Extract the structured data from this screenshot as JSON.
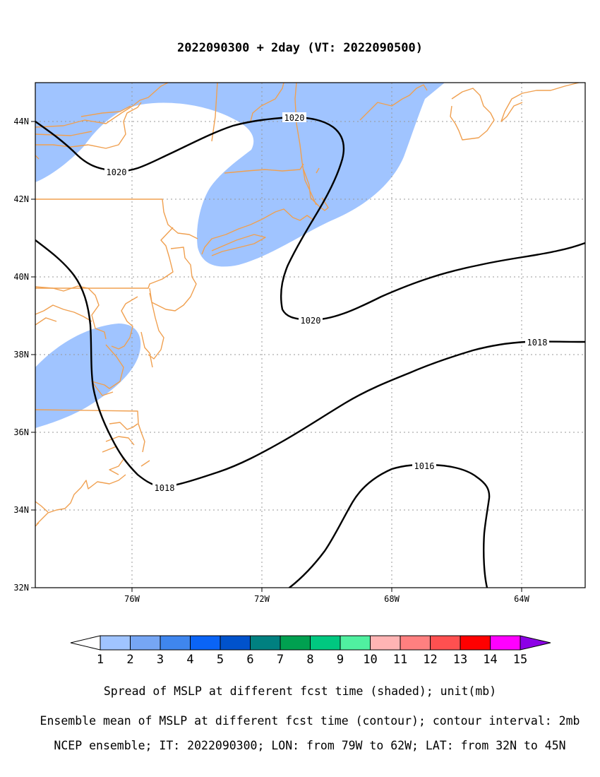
{
  "title": "2022090300 + 2day (VT: 2022090500)",
  "axes": {
    "lon_range": [
      -79,
      -62
    ],
    "lat_range": [
      32,
      45
    ],
    "x_ticks": [
      "76W",
      "72W",
      "68W",
      "64W"
    ],
    "y_ticks": [
      "44N",
      "42N",
      "40N",
      "38N",
      "36N",
      "34N",
      "32N"
    ],
    "grid": "dotted"
  },
  "contours": {
    "labels": [
      "1020",
      "1020",
      "1020",
      "1018",
      "1018",
      "1016"
    ],
    "color": "#000000"
  },
  "shading": {
    "color": "#a0c4ff"
  },
  "coastline_color": "#f0a050",
  "colorbar": {
    "labels": [
      "1",
      "2",
      "3",
      "4",
      "5",
      "6",
      "7",
      "8",
      "9",
      "10",
      "11",
      "12",
      "13",
      "14",
      "15"
    ],
    "colors": [
      "#a0c4ff",
      "#76a6f4",
      "#3f86ee",
      "#0a64f6",
      "#0052cc",
      "#008080",
      "#00a050",
      "#00c880",
      "#50f0a0",
      "#ffb4b4",
      "#ff8080",
      "#ff5050",
      "#ff0000",
      "#ff00ff",
      "#8c00e6"
    ],
    "under_color": "#ffffff"
  },
  "captions": [
    "Spread of MSLP at different fcst time (shaded); unit(mb)",
    "Ensemble mean of MSLP at different fcst time (contour); contour interval: 2mb",
    "NCEP ensemble; IT: 2022090300; LON: from 79W to 62W; LAT: from 32N to 45N"
  ]
}
